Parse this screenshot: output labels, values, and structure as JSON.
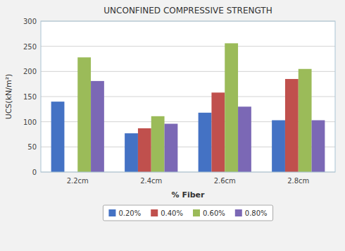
{
  "chart_data": {
    "type": "bar",
    "title": "UNCONFINED COMPRESSIVE STRENGTH",
    "x_label": "% Fiber",
    "y_label": "UCS(kN/m²)",
    "categories": [
      "2.2cm",
      "2.4cm",
      "2.6cm",
      "2.8cm"
    ],
    "series": [
      {
        "name": "0.20%",
        "color": "#4472C4",
        "values": [
          140,
          77,
          118,
          103
        ]
      },
      {
        "name": "0.40%",
        "color": "#C0504D",
        "values": [
          0,
          87,
          158,
          185
        ]
      },
      {
        "name": "0.60%",
        "color": "#9BBB59",
        "values": [
          228,
          111,
          256,
          205
        ]
      },
      {
        "name": "0.80%",
        "color": "#7B68B5",
        "values": [
          181,
          96,
          130,
          103
        ]
      }
    ],
    "ylim": [
      0,
      300
    ],
    "yticks": [
      0,
      50,
      100,
      150,
      200,
      250,
      300
    ],
    "grid": true,
    "legend": "bottom"
  }
}
